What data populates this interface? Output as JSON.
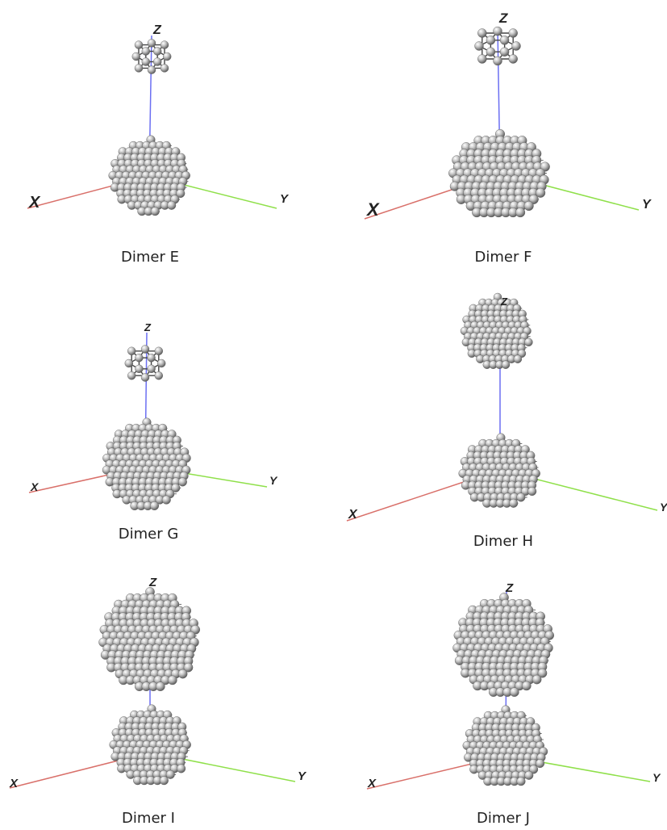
{
  "colors": {
    "x_axis": "#d9706a",
    "y_axis": "#8fe04a",
    "z_axis": "#6b6ff2",
    "atom": "#9a9a9a",
    "bond": "#444444"
  },
  "panels": [
    {
      "id": "E",
      "caption": "Dimer E",
      "upper_cluster": "small",
      "lower_cluster": "medium",
      "labels": {
        "x": "X",
        "y": "Y",
        "z": "Z"
      }
    },
    {
      "id": "F",
      "caption": "Dimer F",
      "upper_cluster": "small",
      "lower_cluster": "large",
      "labels": {
        "x": "X",
        "y": "Y",
        "z": "Z"
      }
    },
    {
      "id": "G",
      "caption": "Dimer G",
      "upper_cluster": "small",
      "lower_cluster": "large",
      "labels": {
        "x": "X",
        "y": "Y",
        "z": "Z"
      }
    },
    {
      "id": "H",
      "caption": "Dimer H",
      "upper_cluster": "medium",
      "lower_cluster": "medium",
      "labels": {
        "x": "X",
        "y": "Y",
        "z": "Z"
      }
    },
    {
      "id": "I",
      "caption": "Dimer I",
      "upper_cluster": "large",
      "lower_cluster": "medium",
      "labels": {
        "x": "X",
        "y": "Y",
        "z": "Z"
      }
    },
    {
      "id": "J",
      "caption": "Dimer J",
      "upper_cluster": "large",
      "lower_cluster": "medium",
      "labels": {
        "x": "X",
        "y": "Y",
        "z": "Z"
      }
    }
  ]
}
